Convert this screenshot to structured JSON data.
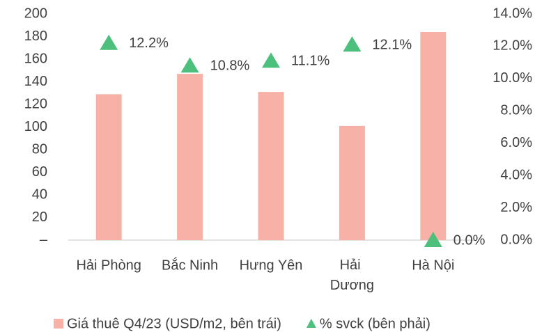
{
  "chart_data": {
    "type": "bar",
    "categories": [
      "Hải Phòng",
      "Bắc Ninh",
      "Hưng Yên",
      "Hải Dương",
      "Hà Nội"
    ],
    "series": [
      {
        "name": "Giá thuê Q4/23 (USD/m2, bên trái)",
        "type": "bar",
        "color": "#f8b1a6",
        "values": [
          129,
          147,
          131,
          101,
          184
        ]
      },
      {
        "name": "% svck (bên phải)",
        "type": "scatter",
        "axis": "y2",
        "color": "#4cc07c",
        "values": [
          12.2,
          10.8,
          11.1,
          12.1,
          0.0
        ],
        "value_labels": [
          "12.2%",
          "10.8%",
          "11.1%",
          "12.1%",
          "0.0%"
        ]
      }
    ],
    "ylim": [
      0,
      200
    ],
    "yticks": [
      {
        "value": 0,
        "label": "–"
      },
      20,
      40,
      60,
      80,
      100,
      120,
      140,
      160,
      180,
      200
    ],
    "y2lim": [
      0,
      14
    ],
    "y2ticks": [
      {
        "value": 0,
        "label": "0.0%"
      },
      {
        "value": 2,
        "label": "2.0%"
      },
      {
        "value": 4,
        "label": "4.0%"
      },
      {
        "value": 6,
        "label": "6.0%"
      },
      {
        "value": 8,
        "label": "8.0%"
      },
      {
        "value": 10,
        "label": "10.0%"
      },
      {
        "value": 12,
        "label": "12.0%"
      },
      {
        "value": 14,
        "label": "14.0%"
      }
    ],
    "grid": false,
    "legend": "bottom"
  }
}
